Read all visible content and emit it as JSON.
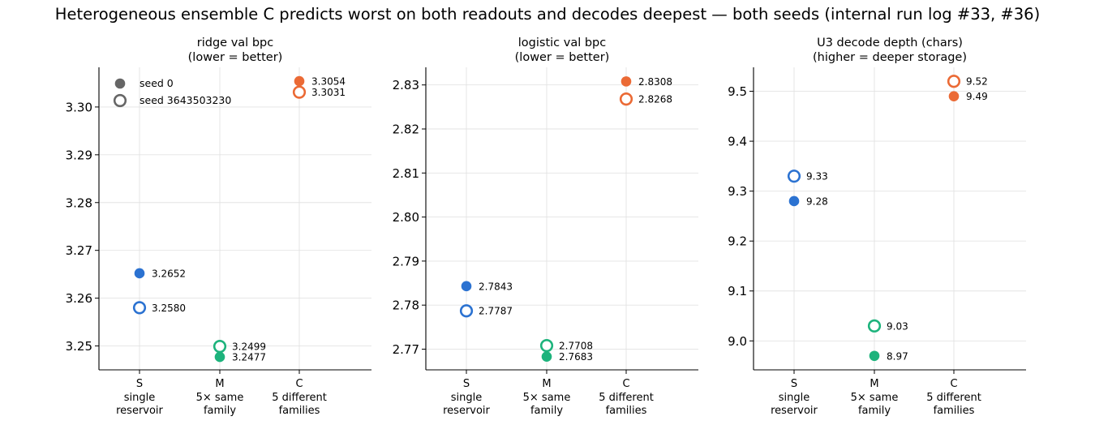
{
  "title": "Heterogeneous ensemble C predicts worst on both readouts and decodes deepest — both seeds (internal run log #33, #36)",
  "categories": [
    {
      "code": "S",
      "line1": "single",
      "line2": "reservoir",
      "color": "#2b72d1"
    },
    {
      "code": "M",
      "line1": "5× same",
      "line2": "family",
      "color": "#1db37c"
    },
    {
      "code": "C",
      "line1": "5 different",
      "line2": "families",
      "color": "#eb6a35"
    }
  ],
  "legend": {
    "seed0": "seed 0",
    "seed1": "seed 3643503230",
    "marker_color": "#666666",
    "placement": "top-left of first panel"
  },
  "chart_data": [
    {
      "type": "scatter",
      "title_line1": "ridge val bpc",
      "title_line2": "(lower = better)",
      "ylim": [
        3.245,
        3.3083
      ],
      "yticks": [
        3.25,
        3.26,
        3.27,
        3.28,
        3.29,
        3.3
      ],
      "decimals": 4,
      "grid": true,
      "series": [
        {
          "name": "seed 0",
          "marker": "filled",
          "values": [
            3.2652,
            3.2477,
            3.3054
          ],
          "labels": [
            "3.2652",
            "3.2477",
            "3.3054"
          ]
        },
        {
          "name": "seed 3643503230",
          "marker": "hollow",
          "values": [
            3.258,
            3.2499,
            3.3031
          ],
          "labels": [
            "3.2580",
            "3.2499",
            "3.3031"
          ]
        }
      ]
    },
    {
      "type": "scatter",
      "title_line1": "logistic val bpc",
      "title_line2": "(lower = better)",
      "ylim": [
        2.7653,
        2.834
      ],
      "yticks": [
        2.77,
        2.78,
        2.79,
        2.8,
        2.81,
        2.82,
        2.83
      ],
      "decimals": 4,
      "grid": true,
      "series": [
        {
          "name": "seed 0",
          "marker": "filled",
          "values": [
            2.7843,
            2.7683,
            2.8308
          ],
          "labels": [
            "2.7843",
            "2.7683",
            "2.8308"
          ]
        },
        {
          "name": "seed 3643503230",
          "marker": "hollow",
          "values": [
            2.7787,
            2.7708,
            2.8268
          ],
          "labels": [
            "2.7787",
            "2.7708",
            "2.8268"
          ]
        }
      ]
    },
    {
      "type": "scatter",
      "title_line1": "U3 decode depth (chars)",
      "title_line2": "(higher = deeper storage)",
      "ylim": [
        8.942,
        9.548
      ],
      "yticks": [
        9.0,
        9.1,
        9.2,
        9.3,
        9.4,
        9.5
      ],
      "decimals": 2,
      "grid": true,
      "series": [
        {
          "name": "seed 0",
          "marker": "filled",
          "values": [
            9.28,
            8.97,
            9.49
          ],
          "labels": [
            "9.28",
            "8.97",
            "9.49"
          ]
        },
        {
          "name": "seed 3643503230",
          "marker": "hollow",
          "values": [
            9.33,
            9.03,
            9.52
          ],
          "labels": [
            "9.33",
            "9.03",
            "9.52"
          ]
        }
      ]
    }
  ]
}
